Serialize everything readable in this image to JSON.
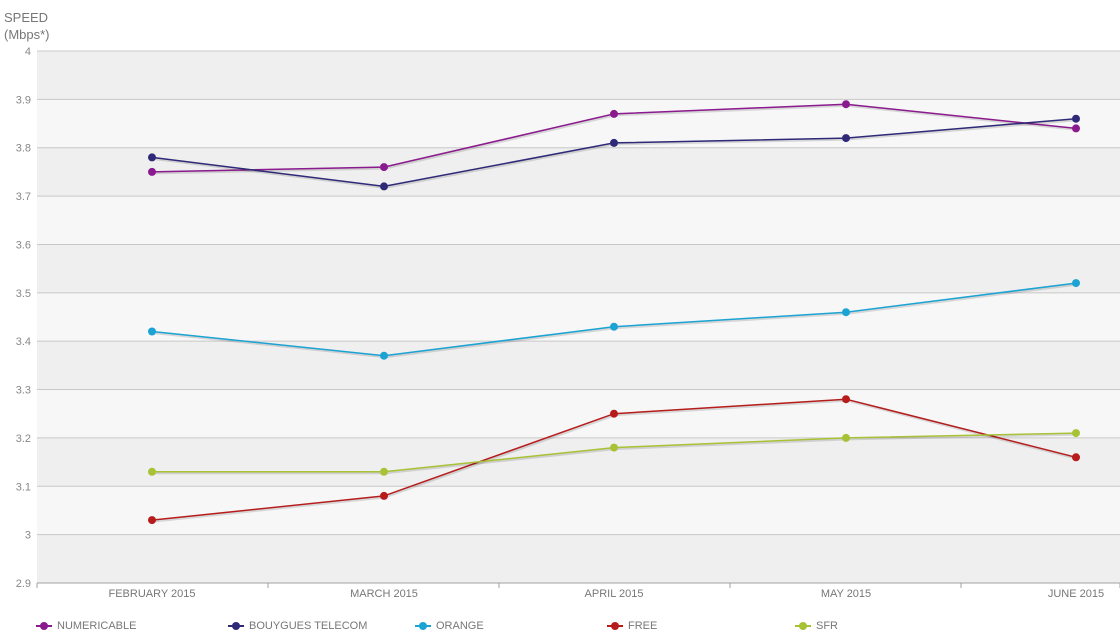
{
  "chart_data": {
    "type": "line",
    "ylabel_line1": "SPEED",
    "ylabel_line2": "(Mbps*)",
    "ylim": [
      2.9,
      4.0
    ],
    "yticks": [
      "2.9",
      "3",
      "3.1",
      "3.2",
      "3.3",
      "3.4",
      "3.5",
      "3.6",
      "3.7",
      "3.8",
      "3.9",
      "4"
    ],
    "categories": [
      "FEBRUARY 2015",
      "MARCH 2015",
      "APRIL 2015",
      "MAY 2015",
      "JUNE 2015"
    ],
    "grid": true,
    "legend_position": "bottom",
    "series": [
      {
        "name": "NUMERICABLE",
        "color": "#8b1a8e",
        "values": [
          3.75,
          3.76,
          3.87,
          3.89,
          3.84
        ]
      },
      {
        "name": "BOUYGUES TELECOM",
        "color": "#2e2a78",
        "values": [
          3.78,
          3.72,
          3.81,
          3.82,
          3.86
        ]
      },
      {
        "name": "ORANGE",
        "color": "#1ba3d4",
        "values": [
          3.42,
          3.37,
          3.43,
          3.46,
          3.52
        ]
      },
      {
        "name": "FREE",
        "color": "#b71c1c",
        "values": [
          3.03,
          3.08,
          3.25,
          3.28,
          3.16
        ]
      },
      {
        "name": "SFR",
        "color": "#a8c236",
        "values": [
          3.13,
          3.13,
          3.18,
          3.2,
          3.21
        ]
      }
    ]
  }
}
